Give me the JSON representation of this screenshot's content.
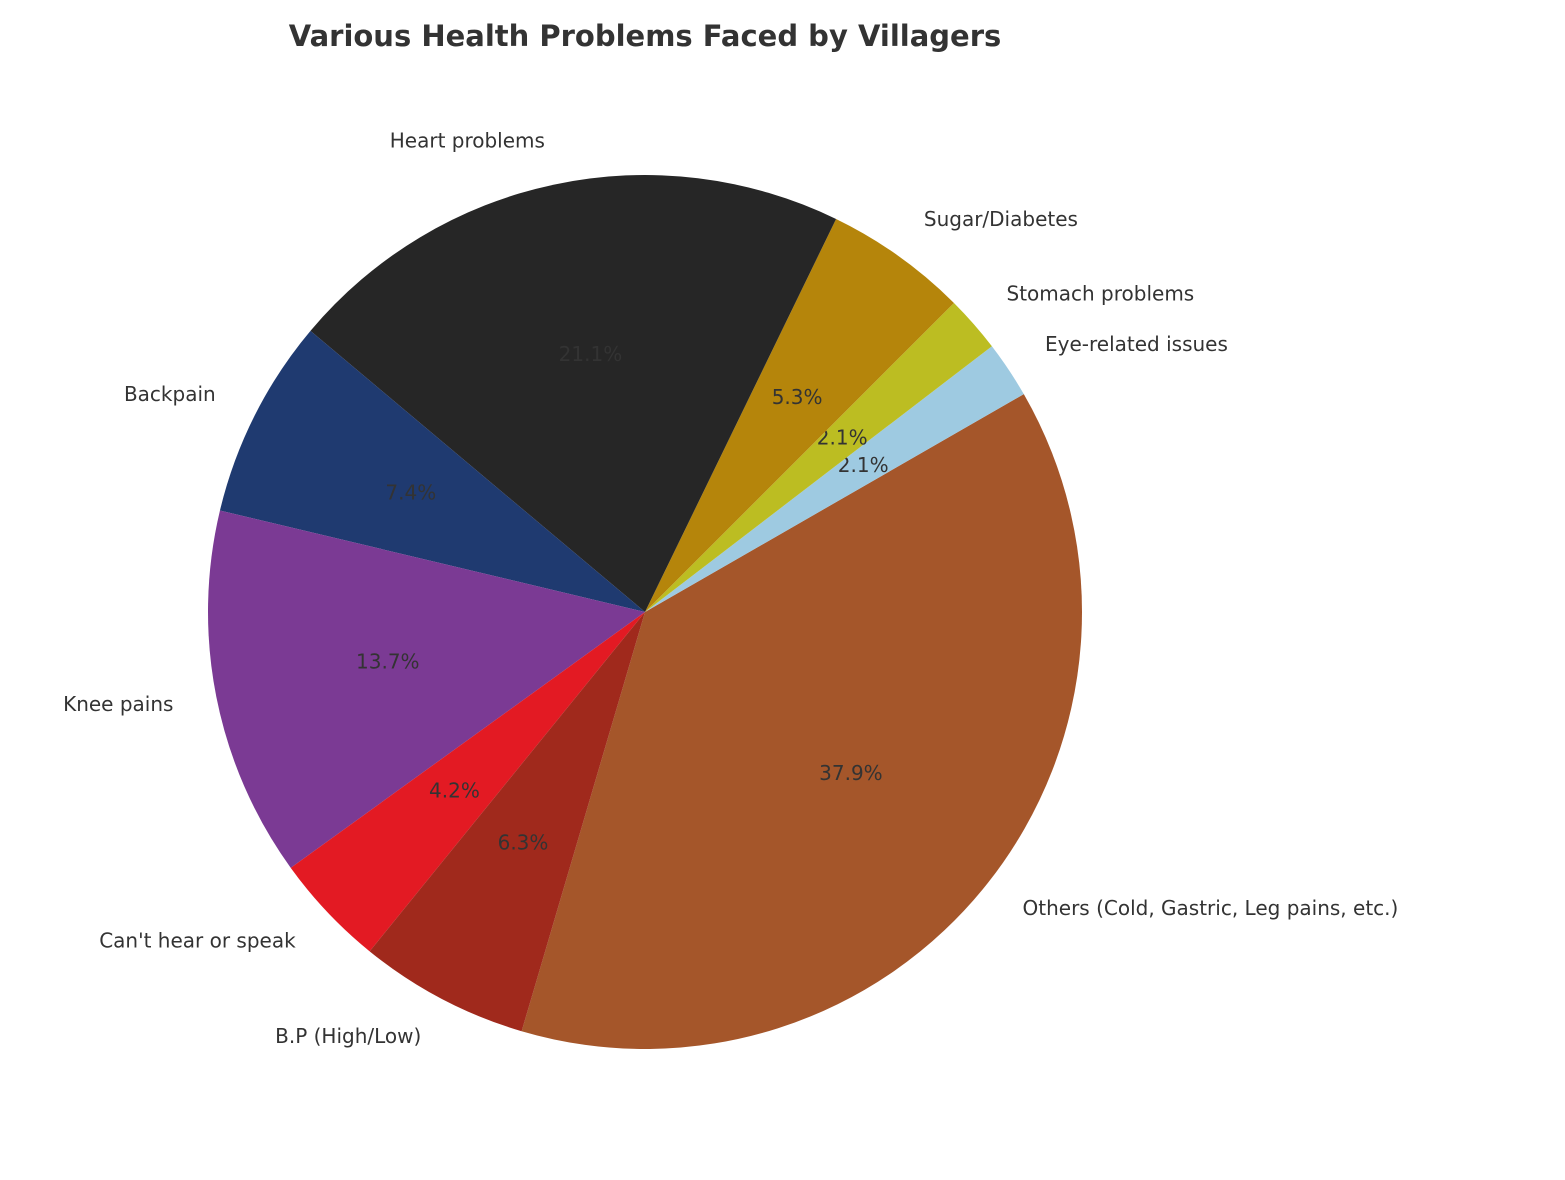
{
  "chart_data": {
    "type": "pie",
    "title": "Various Health Problems Faced by Villagers",
    "categories": [
      "Others (Cold, Gastric, Leg pains, etc.)",
      "Eye-related issues",
      "Stomach problems",
      "Sugar/Diabetes",
      "Heart problems",
      "Backpain",
      "Knee pains",
      "Can't hear or speak",
      "B.P (High/Low)"
    ],
    "values": [
      37.9,
      2.1,
      2.1,
      5.3,
      21.1,
      7.4,
      13.7,
      4.2,
      6.3
    ],
    "value_labels": [
      "37.9%",
      "2.1%",
      "2.1%",
      "5.3%",
      "21.1%",
      "7.4%",
      "13.7%",
      "4.2%",
      "6.3%"
    ],
    "colors": [
      "#a5562a",
      "#9ecae1",
      "#bcbd22",
      "#b5850b",
      "#262626",
      "#1f3a70",
      "#7b3a94",
      "#e31a23",
      "#a0291c"
    ]
  }
}
